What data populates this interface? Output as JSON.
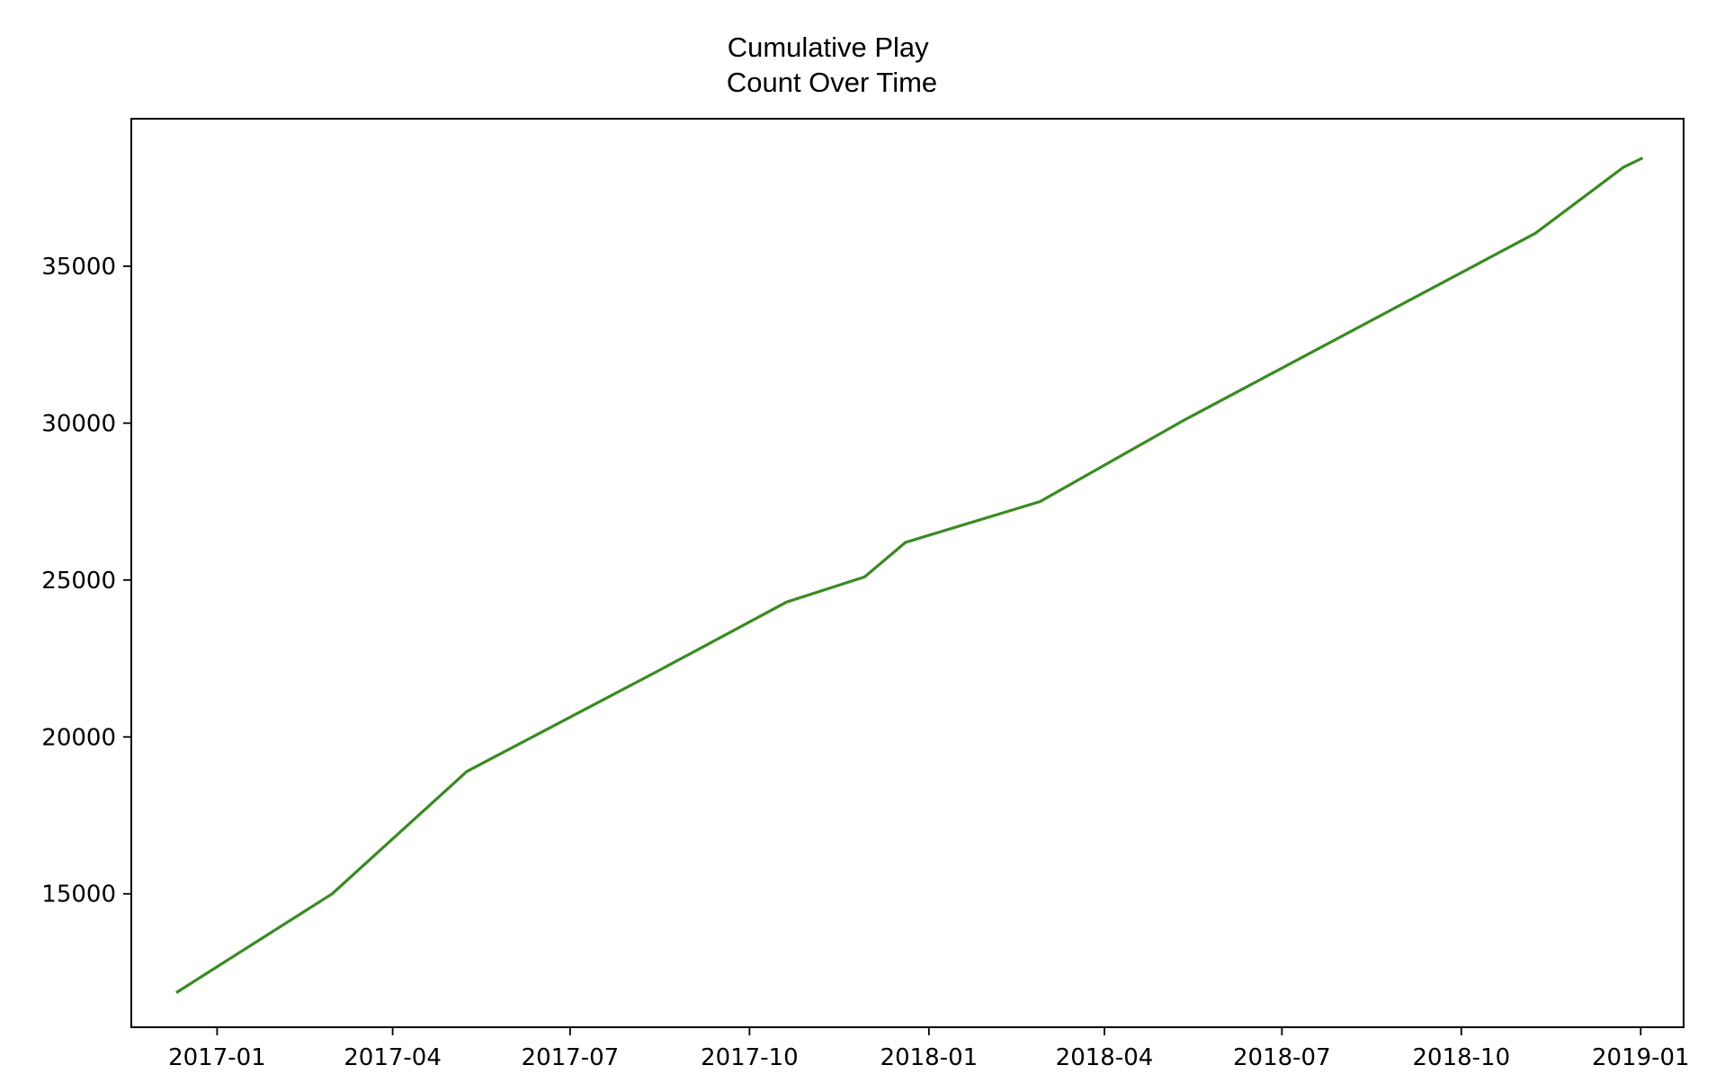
{
  "chart_data": {
    "type": "line",
    "title": "Cumulative Play\nCount Over Time",
    "xlabel": "",
    "ylabel": "",
    "x_ticks": [
      "2017-01",
      "2017-04",
      "2017-07",
      "2017-10",
      "2018-01",
      "2018-04",
      "2018-07",
      "2018-10",
      "2019-01"
    ],
    "y_ticks": [
      15000,
      20000,
      25000,
      30000,
      35000
    ],
    "xlim": [
      "2016-11-18",
      "2019-01-23"
    ],
    "ylim": [
      10750,
      39700
    ],
    "grid": false,
    "legend": "none",
    "series": [
      {
        "color": "#3a8a22",
        "points": [
          {
            "x": "2016-12-11",
            "y": 11850
          },
          {
            "x": "2017-03-01",
            "y": 15000
          },
          {
            "x": "2017-05-09",
            "y": 18900
          },
          {
            "x": "2017-08-15",
            "y": 22100
          },
          {
            "x": "2017-10-20",
            "y": 24300
          },
          {
            "x": "2017-11-29",
            "y": 25100
          },
          {
            "x": "2017-12-20",
            "y": 26200
          },
          {
            "x": "2018-02-27",
            "y": 27500
          },
          {
            "x": "2018-05-12",
            "y": 30100
          },
          {
            "x": "2018-11-08",
            "y": 36050
          },
          {
            "x": "2018-12-23",
            "y": 38150
          },
          {
            "x": "2019-01-02",
            "y": 38450
          }
        ]
      }
    ]
  }
}
